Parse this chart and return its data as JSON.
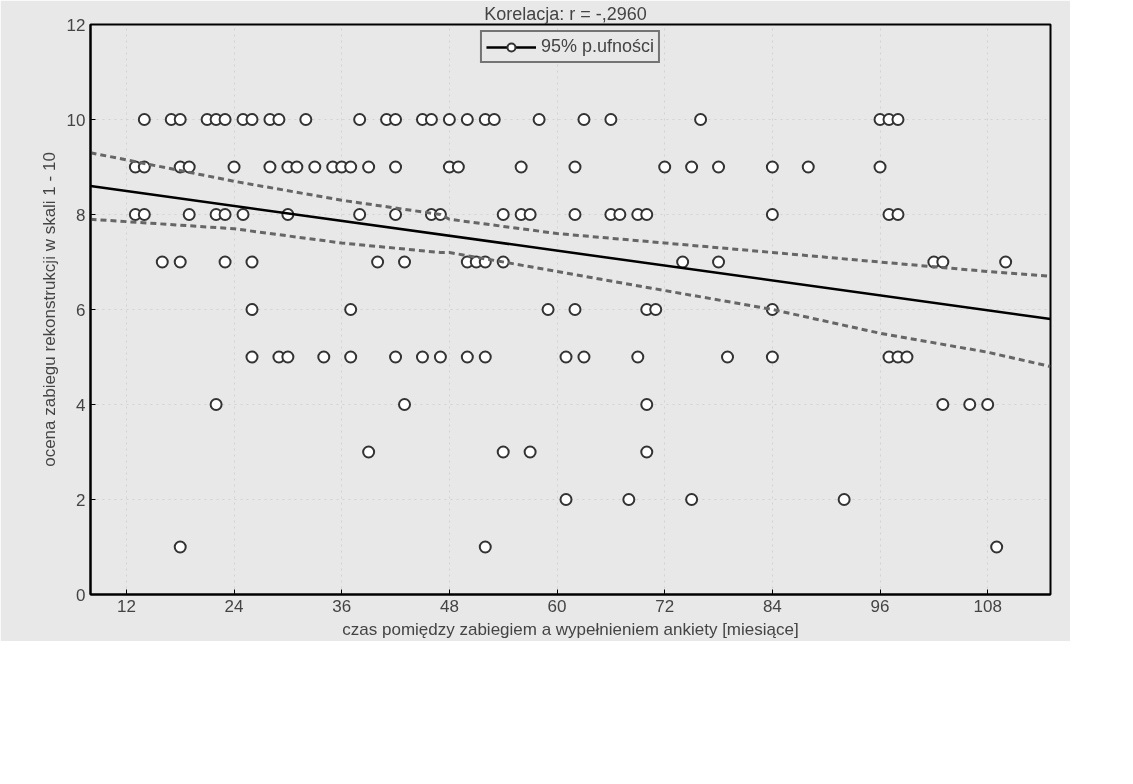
{
  "chart_data": {
    "type": "scatter",
    "xlabel": "czas pomiędzy zabiegiem a wypełnieniem ankiety [miesiące]",
    "ylabel": "ocena zabiegu rekonstrukcji w skali 1 - 10",
    "annotations": [
      "Korelacja: r =   -,2960"
    ],
    "xlim": [
      8,
      115
    ],
    "xticks": [
      12,
      24,
      36,
      48,
      60,
      72,
      84,
      96,
      108
    ],
    "ylim": [
      0,
      12
    ],
    "yticks": [
      0,
      2,
      4,
      6,
      8,
      10,
      12
    ],
    "grid": true,
    "legend": "top",
    "marker": "circle",
    "series": [
      {
        "color": "#333333",
        "x": [
          14,
          17,
          18,
          21,
          22,
          23,
          25,
          26,
          28,
          29,
          32,
          38,
          41,
          42,
          45,
          46,
          48,
          50,
          52,
          53,
          58,
          63,
          66,
          76,
          96,
          97,
          98,
          13,
          14,
          18,
          19,
          24,
          28,
          30,
          31,
          33,
          35,
          36,
          37,
          39,
          42,
          48,
          49,
          56,
          62,
          72,
          75,
          78,
          84,
          88,
          96,
          13,
          14,
          19,
          22,
          23,
          25,
          30,
          38,
          42,
          46,
          47,
          54,
          56,
          57,
          62,
          66,
          67,
          69,
          70,
          84,
          97,
          98,
          16,
          18,
          23,
          26,
          40,
          43,
          50,
          51,
          52,
          54,
          74,
          78,
          102,
          103,
          110,
          26,
          37,
          59,
          62,
          70,
          71,
          84,
          26,
          29,
          30,
          34,
          37,
          42,
          45,
          47,
          50,
          52,
          61,
          63,
          69,
          79,
          84,
          97,
          98,
          99,
          22,
          43,
          70,
          103,
          106,
          108,
          39,
          54,
          57,
          70,
          61,
          68,
          75,
          92,
          18,
          52,
          109
        ],
        "values": [
          10,
          10,
          10,
          10,
          10,
          10,
          10,
          10,
          10,
          10,
          10,
          10,
          10,
          10,
          10,
          10,
          10,
          10,
          10,
          10,
          10,
          10,
          10,
          10,
          10,
          10,
          10,
          9,
          9,
          9,
          9,
          9,
          9,
          9,
          9,
          9,
          9,
          9,
          9,
          9,
          9,
          9,
          9,
          9,
          9,
          9,
          9,
          9,
          9,
          9,
          9,
          8,
          8,
          8,
          8,
          8,
          8,
          8,
          8,
          8,
          8,
          8,
          8,
          8,
          8,
          8,
          8,
          8,
          8,
          8,
          8,
          8,
          8,
          7,
          7,
          7,
          7,
          7,
          7,
          7,
          7,
          7,
          7,
          7,
          7,
          7,
          7,
          7,
          6,
          6,
          6,
          6,
          6,
          6,
          6,
          5,
          5,
          5,
          5,
          5,
          5,
          5,
          5,
          5,
          5,
          5,
          5,
          5,
          5,
          5,
          5,
          5,
          5,
          4,
          4,
          4,
          4,
          4,
          4,
          3,
          3,
          3,
          3,
          2,
          2,
          2,
          2,
          1,
          1,
          1
        ]
      },
      {
        "type": "line",
        "name": "95% p.ufności",
        "color": "#000000",
        "line_style": "solid",
        "marker": "none",
        "x": [
          8,
          115
        ],
        "values": [
          8.6,
          5.8
        ]
      },
      {
        "type": "line",
        "color": "#666666",
        "line_style": "dashed",
        "x": [
          8,
          24,
          36,
          47,
          48,
          60,
          72,
          84,
          96,
          108,
          115
        ],
        "marker": "none",
        "values": [
          9.3,
          8.7,
          8.3,
          8.0,
          7.9,
          7.6,
          7.4,
          7.2,
          7.0,
          6.8,
          6.7
        ]
      },
      {
        "type": "line",
        "color": "#666666",
        "line_style": "dashed",
        "x": [
          8,
          24,
          36,
          47,
          48,
          60,
          72,
          84,
          96,
          108,
          115
        ],
        "marker": "none",
        "values": [
          7.9,
          7.7,
          7.4,
          7.2,
          7.2,
          6.8,
          6.4,
          6.0,
          5.5,
          5.1,
          4.8
        ]
      }
    ]
  }
}
